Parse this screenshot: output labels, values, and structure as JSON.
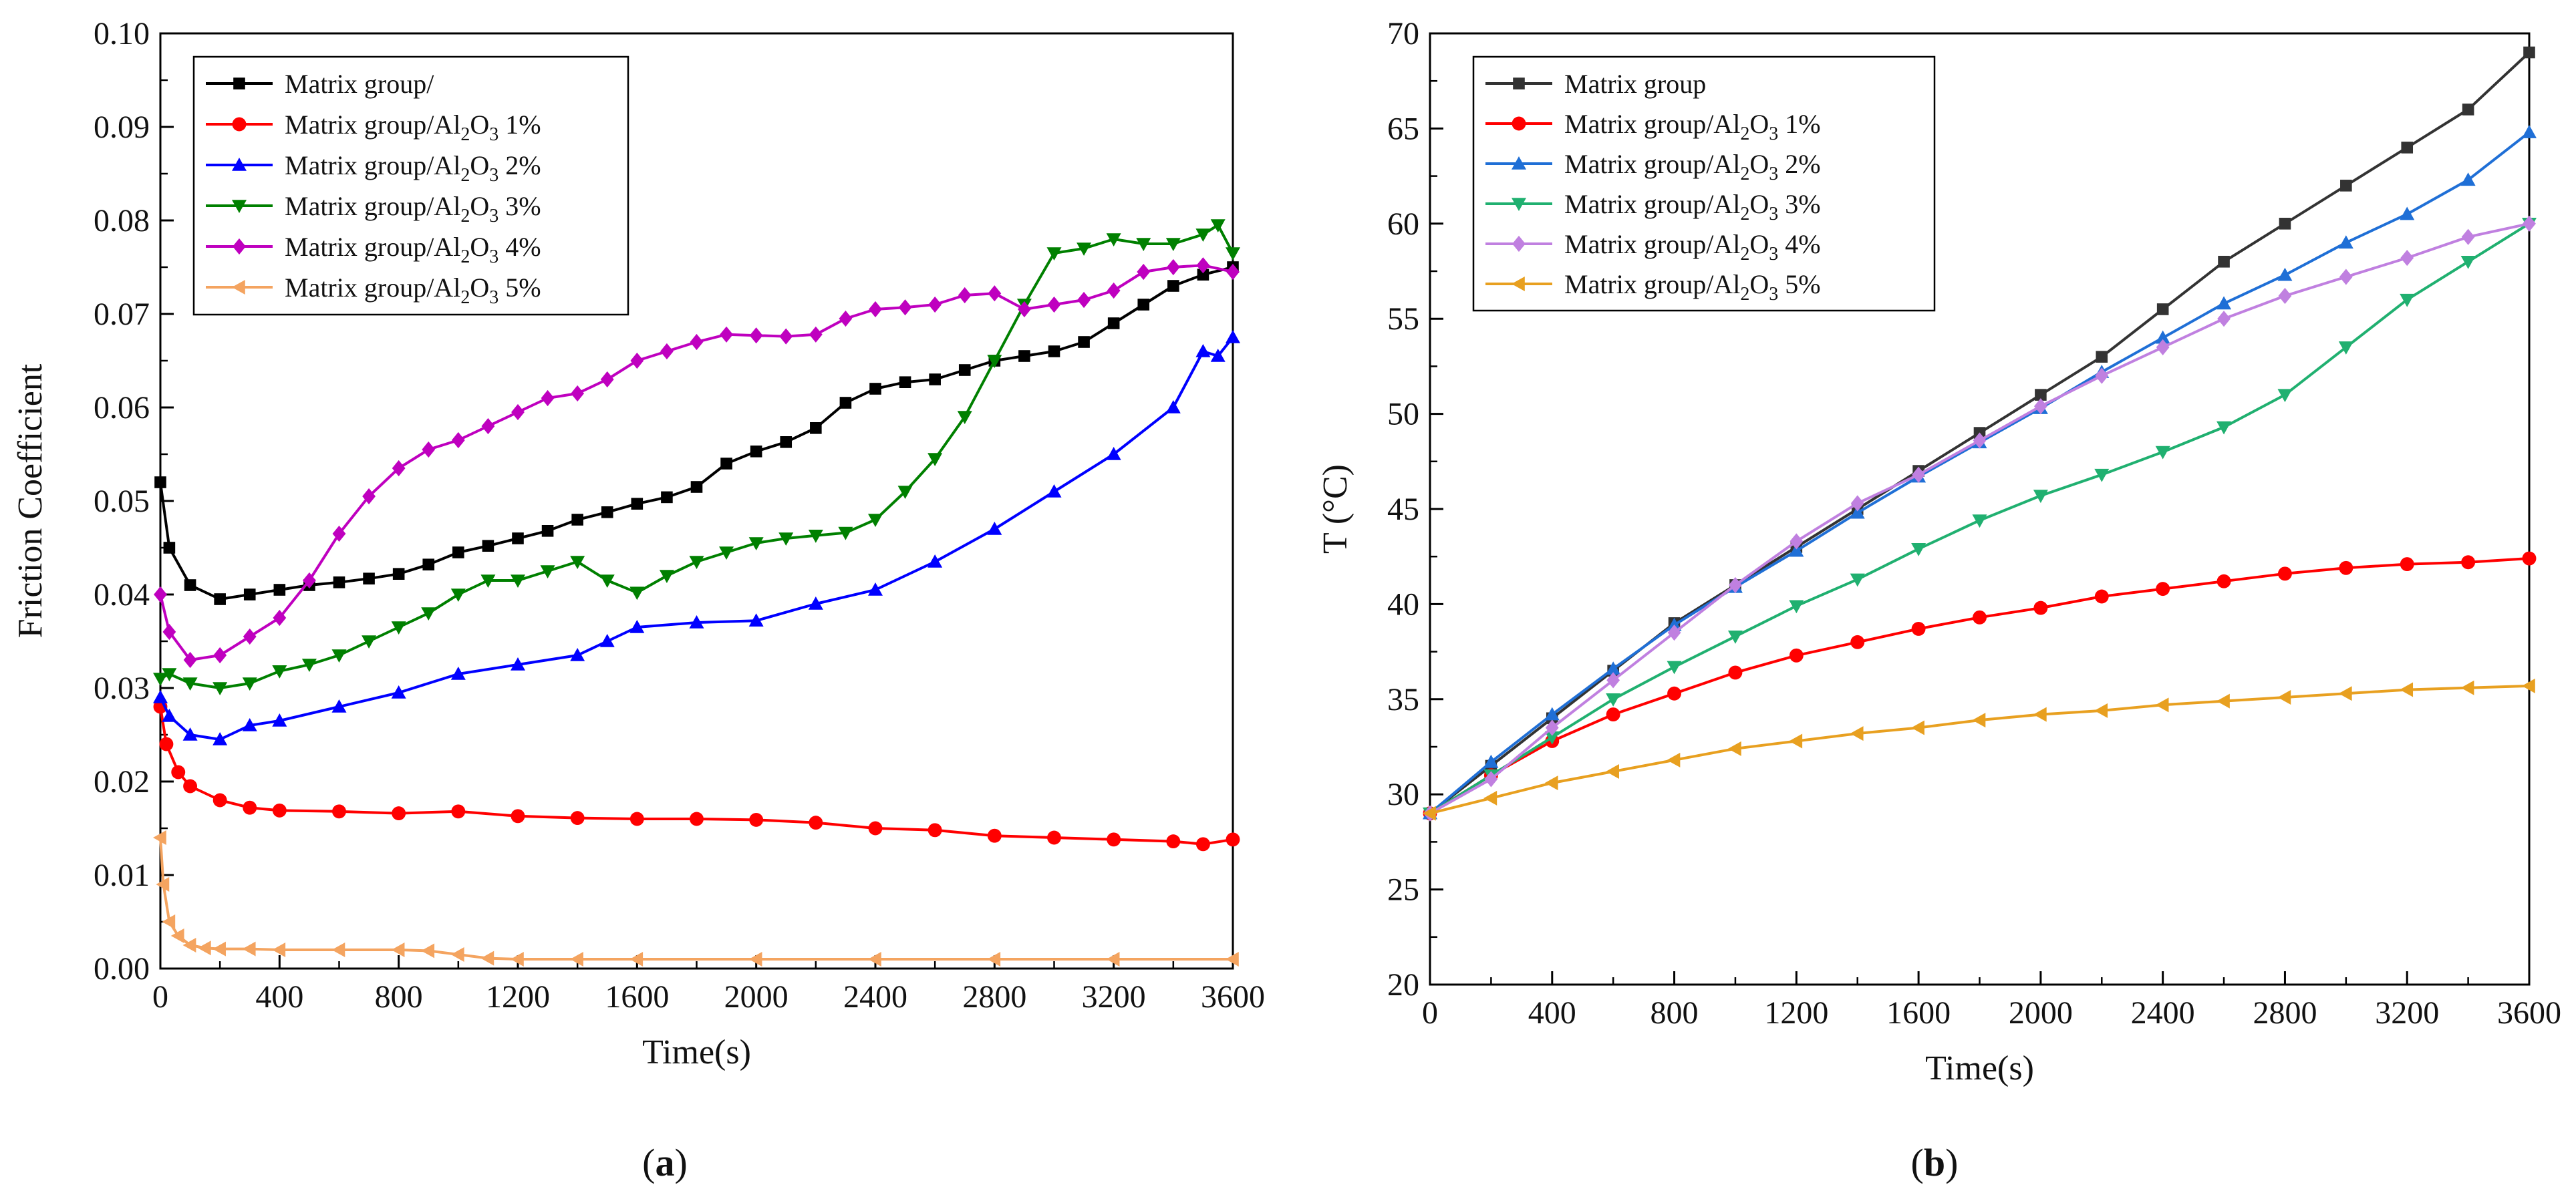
{
  "chart_data": [
    {
      "type": "line",
      "panel": "a",
      "xlabel": "Time(s)",
      "ylabel": "Friction Coefficient",
      "xlim": [
        0,
        3600
      ],
      "ylim": [
        0,
        0.1
      ],
      "xticks": [
        0,
        400,
        800,
        1200,
        1600,
        2000,
        2400,
        2800,
        3200,
        3600
      ],
      "xtick_labels": [
        "0",
        "400",
        "800",
        "1200",
        "1600",
        "2000",
        "2400",
        "2800",
        "3200",
        "3600"
      ],
      "yticks": [
        0,
        0.01,
        0.02,
        0.03,
        0.04,
        0.05,
        0.06,
        0.07,
        0.08,
        0.09,
        0.1
      ],
      "ytick_labels": [
        "0.00",
        "0.01",
        "0.02",
        "0.03",
        "0.04",
        "0.05",
        "0.06",
        "0.07",
        "0.08",
        "0.09",
        "0.10"
      ],
      "legend_position": "top-left",
      "series": [
        {
          "name": "Matrix group/",
          "legend_base": "Matrix group/",
          "legend_sub": "",
          "legend_tail": "",
          "color": "#000000",
          "marker": "square",
          "x": [
            0,
            30,
            100,
            200,
            300,
            400,
            500,
            600,
            700,
            800,
            900,
            1000,
            1100,
            1200,
            1300,
            1400,
            1500,
            1600,
            1700,
            1800,
            1900,
            2000,
            2100,
            2200,
            2300,
            2400,
            2500,
            2600,
            2700,
            2800,
            2900,
            3000,
            3100,
            3200,
            3300,
            3400,
            3500,
            3600
          ],
          "y": [
            0.052,
            0.045,
            0.041,
            0.0395,
            0.04,
            0.0405,
            0.041,
            0.0413,
            0.0417,
            0.0422,
            0.0432,
            0.0445,
            0.0452,
            0.046,
            0.0468,
            0.048,
            0.0488,
            0.0497,
            0.0504,
            0.0515,
            0.054,
            0.0553,
            0.0563,
            0.0578,
            0.0605,
            0.062,
            0.0627,
            0.063,
            0.064,
            0.065,
            0.0655,
            0.066,
            0.067,
            0.069,
            0.071,
            0.073,
            0.0742,
            0.075
          ]
        },
        {
          "name": "Matrix group/Al2O3 1%",
          "legend_base": "Matrix group/Al",
          "legend_sub": "2",
          "legend_mid": "O",
          "legend_sub2": "3",
          "legend_tail": " 1%",
          "color": "#ff0000",
          "marker": "circle",
          "x": [
            0,
            20,
            60,
            100,
            200,
            300,
            400,
            600,
            800,
            1000,
            1200,
            1400,
            1600,
            1800,
            2000,
            2200,
            2400,
            2600,
            2800,
            3000,
            3200,
            3400,
            3500,
            3600
          ],
          "y": [
            0.028,
            0.024,
            0.021,
            0.0195,
            0.018,
            0.0172,
            0.0169,
            0.0168,
            0.0166,
            0.0168,
            0.0163,
            0.0161,
            0.016,
            0.016,
            0.0159,
            0.0156,
            0.015,
            0.0148,
            0.0142,
            0.014,
            0.0138,
            0.0136,
            0.0133,
            0.0138
          ]
        },
        {
          "name": "Matrix group/Al2O3 2%",
          "legend_base": "Matrix group/Al",
          "legend_sub": "2",
          "legend_mid": "O",
          "legend_sub2": "3",
          "legend_tail": " 2%",
          "color": "#0000ff",
          "marker": "triangle-up",
          "x": [
            0,
            30,
            100,
            200,
            300,
            400,
            600,
            800,
            1000,
            1200,
            1400,
            1500,
            1600,
            1800,
            2000,
            2200,
            2400,
            2600,
            2800,
            3000,
            3200,
            3400,
            3500,
            3550,
            3600
          ],
          "y": [
            0.029,
            0.027,
            0.025,
            0.0245,
            0.026,
            0.0265,
            0.028,
            0.0295,
            0.0315,
            0.0325,
            0.0335,
            0.035,
            0.0365,
            0.037,
            0.0372,
            0.039,
            0.0405,
            0.0435,
            0.047,
            0.051,
            0.055,
            0.06,
            0.066,
            0.0655,
            0.0675
          ]
        },
        {
          "name": "Matrix group/Al2O3 3%",
          "legend_base": "Matrix group/Al",
          "legend_sub": "2",
          "legend_mid": "O",
          "legend_sub2": "3",
          "legend_tail": " 3%",
          "color": "#008000",
          "marker": "triangle-down",
          "x": [
            0,
            30,
            100,
            200,
            300,
            400,
            500,
            600,
            700,
            800,
            900,
            1000,
            1100,
            1200,
            1300,
            1400,
            1500,
            1600,
            1700,
            1800,
            1900,
            2000,
            2100,
            2200,
            2300,
            2400,
            2500,
            2600,
            2700,
            2800,
            2900,
            3000,
            3100,
            3200,
            3300,
            3400,
            3500,
            3550,
            3600
          ],
          "y": [
            0.031,
            0.0315,
            0.0305,
            0.03,
            0.0305,
            0.0318,
            0.0325,
            0.0335,
            0.035,
            0.0365,
            0.038,
            0.04,
            0.0415,
            0.0415,
            0.0425,
            0.0435,
            0.0415,
            0.0402,
            0.042,
            0.0435,
            0.0445,
            0.0455,
            0.046,
            0.0463,
            0.0466,
            0.048,
            0.051,
            0.0545,
            0.059,
            0.065,
            0.071,
            0.0765,
            0.077,
            0.078,
            0.0775,
            0.0775,
            0.0785,
            0.0795,
            0.0765
          ]
        },
        {
          "name": "Matrix group/Al2O3 4%",
          "legend_base": "Matrix group/Al",
          "legend_sub": "2",
          "legend_mid": "O",
          "legend_sub2": "3",
          "legend_tail": " 4%",
          "color": "#bf00bf",
          "marker": "diamond",
          "x": [
            0,
            30,
            100,
            200,
            300,
            400,
            500,
            600,
            700,
            800,
            900,
            1000,
            1100,
            1200,
            1300,
            1400,
            1500,
            1600,
            1700,
            1800,
            1900,
            2000,
            2100,
            2200,
            2300,
            2400,
            2500,
            2600,
            2700,
            2800,
            2900,
            3000,
            3100,
            3200,
            3300,
            3400,
            3500,
            3600
          ],
          "y": [
            0.04,
            0.036,
            0.033,
            0.0335,
            0.0355,
            0.0375,
            0.0415,
            0.0465,
            0.0505,
            0.0535,
            0.0555,
            0.0565,
            0.058,
            0.0595,
            0.061,
            0.0615,
            0.063,
            0.065,
            0.066,
            0.067,
            0.0678,
            0.0677,
            0.0676,
            0.0678,
            0.0695,
            0.0705,
            0.0707,
            0.071,
            0.072,
            0.0722,
            0.0705,
            0.071,
            0.0715,
            0.0725,
            0.0745,
            0.075,
            0.0752,
            0.0745
          ]
        },
        {
          "name": "Matrix group/Al2O3 5%",
          "legend_base": "Matrix group/Al",
          "legend_sub": "2",
          "legend_mid": "O",
          "legend_sub2": "3",
          "legend_tail": " 5%",
          "color": "#f4a460",
          "marker": "triangle-left",
          "x": [
            0,
            10,
            30,
            60,
            100,
            150,
            200,
            300,
            400,
            600,
            800,
            900,
            1000,
            1100,
            1200,
            1400,
            1600,
            2000,
            2400,
            2800,
            3200,
            3600
          ],
          "y": [
            0.014,
            0.009,
            0.005,
            0.0035,
            0.0025,
            0.0022,
            0.0021,
            0.0021,
            0.002,
            0.002,
            0.002,
            0.0019,
            0.0015,
            0.0011,
            0.001,
            0.001,
            0.001,
            0.001,
            0.001,
            0.001,
            0.001,
            0.001
          ]
        }
      ]
    },
    {
      "type": "line",
      "panel": "b",
      "xlabel": "Time(s)",
      "ylabel": "T (°C)",
      "xlim": [
        0,
        3600
      ],
      "ylim": [
        20,
        70
      ],
      "xticks": [
        0,
        400,
        800,
        1200,
        1600,
        2000,
        2400,
        2800,
        3200,
        3600
      ],
      "xtick_labels": [
        "0",
        "400",
        "800",
        "1200",
        "1600",
        "2000",
        "2400",
        "2800",
        "3200",
        "3600"
      ],
      "yticks": [
        20,
        25,
        30,
        35,
        40,
        45,
        50,
        55,
        60,
        65,
        70
      ],
      "ytick_labels": [
        "20",
        "25",
        "30",
        "35",
        "40",
        "45",
        "50",
        "55",
        "60",
        "65",
        "70"
      ],
      "legend_position": "top-left",
      "series": [
        {
          "name": "Matrix group",
          "legend_base": "Matrix group",
          "legend_sub": "",
          "legend_tail": "",
          "color": "#333333",
          "marker": "square",
          "x": [
            0,
            200,
            400,
            600,
            800,
            1000,
            1200,
            1400,
            1600,
            1800,
            2000,
            2200,
            2400,
            2600,
            2800,
            3000,
            3200,
            3400,
            3600
          ],
          "y": [
            29,
            31.5,
            34,
            36.5,
            39,
            41,
            43,
            45,
            47,
            49,
            51,
            53,
            55.5,
            58,
            60,
            62,
            64,
            66,
            69
          ]
        },
        {
          "name": "Matrix group/Al2O3 1%",
          "legend_base": "Matrix group/Al",
          "legend_sub": "2",
          "legend_mid": "O",
          "legend_sub2": "3",
          "legend_tail": " 1%",
          "color": "#ff0000",
          "marker": "circle",
          "x": [
            0,
            200,
            400,
            600,
            800,
            1000,
            1200,
            1400,
            1600,
            1800,
            2000,
            2200,
            2400,
            2600,
            2800,
            3000,
            3200,
            3400,
            3600
          ],
          "y": [
            29,
            31,
            32.8,
            34.2,
            35.3,
            36.4,
            37.3,
            38,
            38.7,
            39.3,
            39.8,
            40.4,
            40.8,
            41.2,
            41.6,
            41.9,
            42.1,
            42.2,
            42.4
          ]
        },
        {
          "name": "Matrix group/Al2O3 2%",
          "legend_base": "Matrix group/Al",
          "legend_sub": "2",
          "legend_mid": "O",
          "legend_sub2": "3",
          "legend_tail": " 2%",
          "color": "#1f6fd6",
          "marker": "triangle-up",
          "x": [
            0,
            200,
            400,
            600,
            800,
            1000,
            1200,
            1400,
            1600,
            1800,
            2000,
            2200,
            2400,
            2600,
            2800,
            3000,
            3200,
            3400,
            3600
          ],
          "y": [
            29,
            31.7,
            34.2,
            36.6,
            38.9,
            40.9,
            42.8,
            44.8,
            46.7,
            48.5,
            50.3,
            52.2,
            54,
            55.8,
            57.3,
            59,
            60.5,
            62.3,
            64.8
          ]
        },
        {
          "name": "Matrix group/Al2O3 3%",
          "legend_base": "Matrix group/Al",
          "legend_sub": "2",
          "legend_mid": "O",
          "legend_sub2": "3",
          "legend_tail": " 3%",
          "color": "#20b070",
          "marker": "triangle-down",
          "x": [
            0,
            200,
            400,
            600,
            800,
            1000,
            1200,
            1400,
            1600,
            1800,
            2000,
            2200,
            2400,
            2600,
            2800,
            3000,
            3200,
            3400,
            3600
          ],
          "y": [
            29,
            31,
            33,
            35,
            36.7,
            38.3,
            39.9,
            41.3,
            42.9,
            44.4,
            45.7,
            46.8,
            48,
            49.3,
            51,
            53.5,
            56,
            58,
            60
          ]
        },
        {
          "name": "Matrix group/Al2O3 4%",
          "legend_base": "Matrix group/Al",
          "legend_sub": "2",
          "legend_mid": "O",
          "legend_sub2": "3",
          "legend_tail": " 4%",
          "color": "#c080e0",
          "marker": "diamond",
          "x": [
            0,
            200,
            400,
            600,
            800,
            1000,
            1200,
            1400,
            1600,
            1800,
            2000,
            2200,
            2400,
            2600,
            2800,
            3000,
            3200,
            3400,
            3600
          ],
          "y": [
            29,
            30.8,
            33.5,
            36,
            38.5,
            41,
            43.3,
            45.3,
            46.8,
            48.6,
            50.4,
            52,
            53.5,
            55,
            56.2,
            57.2,
            58.2,
            59.3,
            60
          ]
        },
        {
          "name": "Matrix group/Al2O3 5%",
          "legend_base": "Matrix group/Al",
          "legend_sub": "2",
          "legend_mid": "O",
          "legend_sub2": "3",
          "legend_tail": " 5%",
          "color": "#e8a020",
          "marker": "triangle-left",
          "x": [
            0,
            200,
            400,
            600,
            800,
            1000,
            1200,
            1400,
            1600,
            1800,
            2000,
            2200,
            2400,
            2600,
            2800,
            3000,
            3200,
            3400,
            3600
          ],
          "y": [
            29,
            29.8,
            30.6,
            31.2,
            31.8,
            32.4,
            32.8,
            33.2,
            33.5,
            33.9,
            34.2,
            34.4,
            34.7,
            34.9,
            35.1,
            35.3,
            35.5,
            35.6,
            35.7
          ]
        }
      ]
    }
  ],
  "panel_labels": [
    {
      "open": "(",
      "letter": "a",
      "close": ")"
    },
    {
      "open": "(",
      "letter": "b",
      "close": ")"
    }
  ]
}
